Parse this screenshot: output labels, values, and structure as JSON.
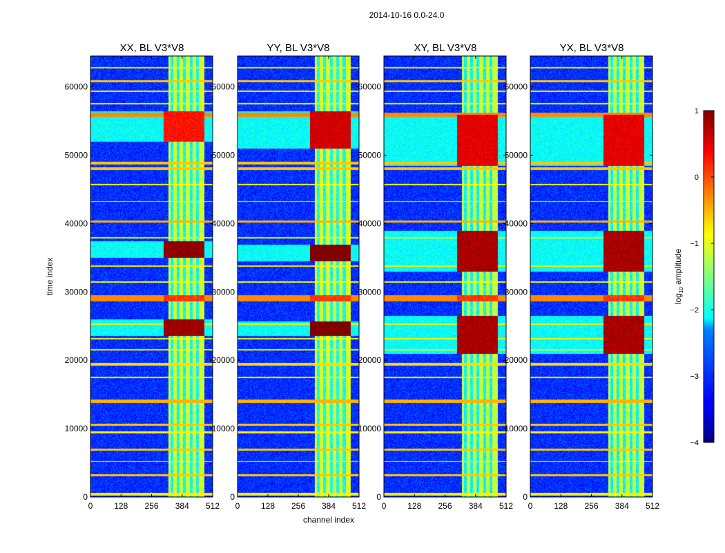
{
  "chart_data": {
    "type": "heatmap",
    "suptitle": "2014-10-16 0.0-24.0",
    "xlabel": "channel index",
    "ylabel": "time index",
    "xlim": [
      0,
      512
    ],
    "ylim": [
      0,
      64500
    ],
    "x_ticks": [
      0,
      128,
      256,
      384,
      512
    ],
    "y_ticks": [
      0,
      10000,
      20000,
      30000,
      40000,
      50000,
      60000
    ],
    "colormap": "jet",
    "colorbar": {
      "label_main": "log",
      "label_sub": "10",
      "label_tail": " amplitude",
      "range": [
        -4,
        1
      ],
      "ticks": [
        -4,
        -3,
        -2,
        -1,
        0,
        1
      ],
      "tick_labels": [
        "−4",
        "−3",
        "−2",
        "−1",
        "0",
        "1"
      ]
    },
    "panels": [
      {
        "title": "XX, BL V3*V8",
        "level": 1.0,
        "bright_rows": [
          [
            35000,
            37500,
            0.95
          ],
          [
            23600,
            26000,
            0.85
          ],
          [
            52000,
            56500,
            0.3
          ],
          [
            28700,
            29600,
            0.1
          ]
        ]
      },
      {
        "title": "YY, BL V3*V8",
        "level": 1.1,
        "bright_rows": [
          [
            34500,
            37000,
            1.2
          ],
          [
            23600,
            25700,
            1.2
          ],
          [
            51000,
            56500,
            0.6
          ],
          [
            28700,
            29600,
            0.1
          ]
        ]
      },
      {
        "title": "XY, BL V3*V8",
        "level": 0.9,
        "bright_rows": [
          [
            33000,
            39000,
            0.8
          ],
          [
            21000,
            26500,
            0.8
          ],
          [
            48500,
            56000,
            0.5
          ],
          [
            28700,
            29600,
            0.1
          ]
        ]
      },
      {
        "title": "YX, BL V3*V8",
        "level": 0.9,
        "bright_rows": [
          [
            33000,
            39000,
            0.8
          ],
          [
            21000,
            26500,
            0.8
          ],
          [
            48500,
            56000,
            0.5
          ],
          [
            28700,
            29600,
            0.1
          ]
        ]
      }
    ],
    "rfi_channel_band": [
      325,
      475
    ],
    "rfi_rows": [
      [
        250,
        700,
        -0.8
      ],
      [
        3100,
        3400,
        -0.6
      ],
      [
        5200,
        5350,
        -0.9
      ],
      [
        6800,
        7100,
        -0.6
      ],
      [
        9400,
        9700,
        -0.8
      ],
      [
        10500,
        10800,
        -0.6
      ],
      [
        13800,
        14300,
        -0.5
      ],
      [
        17400,
        17600,
        -0.9
      ],
      [
        19300,
        19700,
        -0.7
      ],
      [
        21500,
        21650,
        -1.0
      ],
      [
        23100,
        23300,
        -0.9
      ],
      [
        25200,
        25400,
        -0.8
      ],
      [
        28700,
        29600,
        -0.3
      ],
      [
        31400,
        31600,
        -0.9
      ],
      [
        33700,
        33900,
        -0.8
      ],
      [
        37900,
        38100,
        -1.0
      ],
      [
        40200,
        40500,
        -0.5
      ],
      [
        43200,
        43350,
        -1.0
      ],
      [
        45600,
        45800,
        -0.9
      ],
      [
        47900,
        48300,
        -0.6
      ],
      [
        48700,
        49100,
        -0.6
      ],
      [
        55700,
        56300,
        -0.3
      ],
      [
        57500,
        57650,
        -0.9
      ],
      [
        59300,
        59500,
        -0.8
      ],
      [
        60700,
        61000,
        -0.6
      ],
      [
        62700,
        62900,
        -0.8
      ]
    ]
  }
}
